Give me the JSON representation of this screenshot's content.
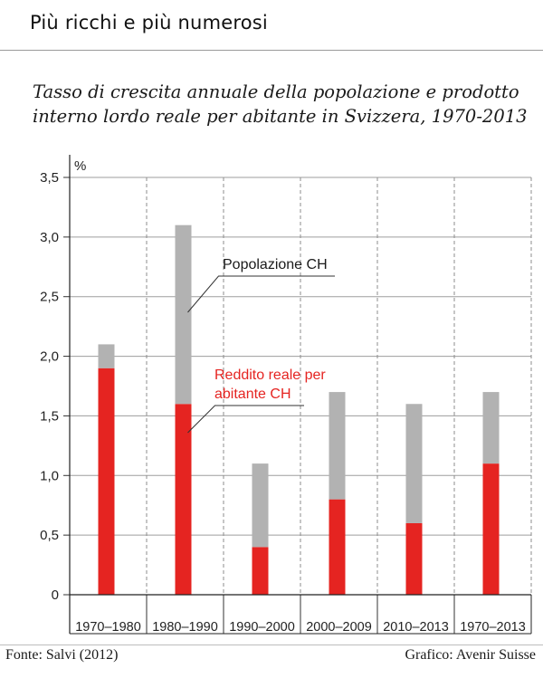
{
  "title": "Più ricchi e più numerosi",
  "subtitle": "Tasso di crescita annuale della popolazione e prodotto interno lordo reale per abitante in Svizzera, 1970-2013",
  "footer": {
    "source": "Fonte: Salvi (2012)",
    "credit": "Grafico: Avenir Suisse"
  },
  "colors": {
    "reddito": "#e52421",
    "popolazione": "#b2b2b2",
    "grid": "#9d9d9d"
  },
  "chart_data": {
    "type": "bar",
    "stacked": true,
    "ylabel": "%",
    "ylim": [
      0,
      3.5
    ],
    "yticks": [
      "0",
      "0,5",
      "1,0",
      "1,5",
      "2,0",
      "2,5",
      "3,0",
      "3,5"
    ],
    "categories": [
      "1970–1980",
      "1980–1990",
      "1990–2000",
      "2000–2009",
      "2010–2013",
      "1970–2013"
    ],
    "series": [
      {
        "name": "Reddito reale per abitante CH",
        "values": [
          1.9,
          1.6,
          0.4,
          0.8,
          0.6,
          1.1
        ]
      },
      {
        "name": "Popolazione CH",
        "values": [
          0.2,
          1.5,
          0.7,
          0.9,
          1.0,
          0.6
        ]
      }
    ],
    "annotations": {
      "popolazione": "Popolazione CH",
      "reddito_line1": "Reddito reale per",
      "reddito_line2": "abitante CH"
    },
    "grid": true
  }
}
